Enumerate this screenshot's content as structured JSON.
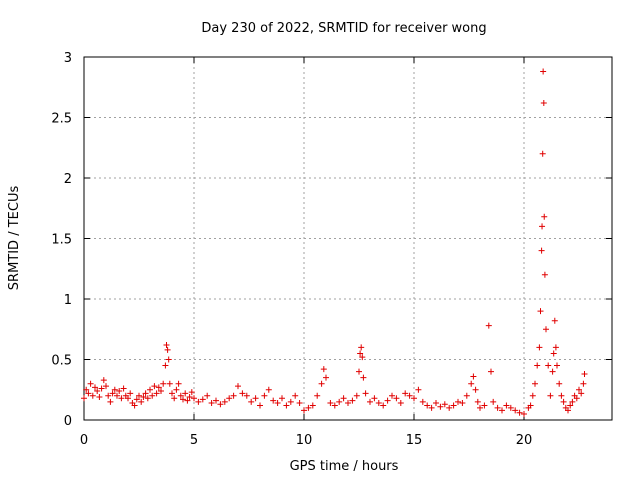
{
  "chart_data": {
    "type": "scatter",
    "title": "Day 230 of 2022, SRMTID for receiver wong",
    "xlabel": "GPS time / hours",
    "ylabel": "SRMTID / TECUs",
    "xlim": [
      0,
      24
    ],
    "ylim": [
      0,
      3
    ],
    "xticks": [
      0,
      5,
      10,
      15,
      20
    ],
    "xtick_labels": [
      "0",
      "5",
      "10",
      "15",
      "20"
    ],
    "yticks": [
      0,
      0.5,
      1,
      1.5,
      2,
      2.5,
      3
    ],
    "ytick_labels": [
      "0",
      "0.5",
      "1",
      "1.5",
      "2",
      "2.5",
      "3"
    ],
    "grid": true,
    "marker": "+",
    "color": "#e00000",
    "series": [
      {
        "name": "SRMTID",
        "x": [
          0.0,
          0.1,
          0.2,
          0.3,
          0.4,
          0.5,
          0.6,
          0.7,
          0.8,
          0.9,
          1.0,
          1.1,
          1.2,
          1.3,
          1.4,
          1.5,
          1.6,
          1.7,
          1.8,
          1.9,
          2.0,
          2.1,
          2.2,
          2.3,
          2.4,
          2.5,
          2.6,
          2.7,
          2.8,
          2.9,
          3.0,
          3.1,
          3.2,
          3.3,
          3.4,
          3.5,
          3.6,
          3.7,
          3.75,
          3.8,
          3.85,
          3.9,
          4.0,
          4.1,
          4.2,
          4.3,
          4.4,
          4.5,
          4.6,
          4.7,
          4.8,
          4.9,
          5.0,
          5.2,
          5.4,
          5.6,
          5.8,
          6.0,
          6.2,
          6.4,
          6.6,
          6.8,
          7.0,
          7.2,
          7.4,
          7.6,
          7.8,
          8.0,
          8.2,
          8.4,
          8.6,
          8.8,
          9.0,
          9.2,
          9.4,
          9.6,
          9.8,
          10.0,
          10.2,
          10.4,
          10.6,
          10.8,
          10.9,
          11.0,
          11.2,
          11.4,
          11.6,
          11.8,
          12.0,
          12.2,
          12.4,
          12.5,
          12.55,
          12.6,
          12.65,
          12.7,
          12.8,
          13.0,
          13.2,
          13.4,
          13.6,
          13.8,
          14.0,
          14.2,
          14.4,
          14.6,
          14.8,
          15.0,
          15.2,
          15.4,
          15.6,
          15.8,
          16.0,
          16.2,
          16.4,
          16.6,
          16.8,
          17.0,
          17.2,
          17.4,
          17.6,
          17.7,
          17.8,
          17.9,
          18.0,
          18.2,
          18.4,
          18.5,
          18.6,
          18.8,
          19.0,
          19.2,
          19.4,
          19.6,
          19.8,
          20.0,
          20.2,
          20.3,
          20.4,
          20.5,
          20.6,
          20.7,
          20.75,
          20.8,
          20.82,
          20.85,
          20.87,
          20.9,
          20.92,
          20.95,
          21.0,
          21.1,
          21.2,
          21.3,
          21.35,
          21.4,
          21.45,
          21.5,
          21.6,
          21.7,
          21.8,
          21.9,
          22.0,
          22.1,
          22.2,
          22.3,
          22.4,
          22.5,
          22.6,
          22.7,
          22.75
        ],
        "y": [
          0.18,
          0.25,
          0.22,
          0.3,
          0.2,
          0.27,
          0.24,
          0.19,
          0.26,
          0.33,
          0.28,
          0.2,
          0.15,
          0.22,
          0.25,
          0.2,
          0.24,
          0.18,
          0.26,
          0.2,
          0.18,
          0.22,
          0.14,
          0.12,
          0.17,
          0.2,
          0.15,
          0.19,
          0.22,
          0.18,
          0.25,
          0.2,
          0.28,
          0.22,
          0.27,
          0.24,
          0.3,
          0.45,
          0.62,
          0.58,
          0.5,
          0.3,
          0.22,
          0.18,
          0.25,
          0.3,
          0.2,
          0.17,
          0.22,
          0.16,
          0.19,
          0.23,
          0.18,
          0.15,
          0.17,
          0.2,
          0.14,
          0.16,
          0.13,
          0.15,
          0.18,
          0.2,
          0.28,
          0.22,
          0.2,
          0.15,
          0.18,
          0.12,
          0.2,
          0.25,
          0.16,
          0.14,
          0.18,
          0.12,
          0.15,
          0.2,
          0.14,
          0.08,
          0.1,
          0.12,
          0.2,
          0.3,
          0.42,
          0.35,
          0.14,
          0.12,
          0.15,
          0.18,
          0.14,
          0.16,
          0.2,
          0.4,
          0.55,
          0.6,
          0.52,
          0.35,
          0.22,
          0.15,
          0.18,
          0.14,
          0.12,
          0.16,
          0.2,
          0.18,
          0.14,
          0.22,
          0.2,
          0.18,
          0.25,
          0.15,
          0.12,
          0.1,
          0.14,
          0.11,
          0.13,
          0.1,
          0.12,
          0.15,
          0.14,
          0.2,
          0.3,
          0.36,
          0.25,
          0.15,
          0.1,
          0.12,
          0.78,
          0.4,
          0.15,
          0.1,
          0.08,
          0.12,
          0.1,
          0.08,
          0.06,
          0.05,
          0.1,
          0.12,
          0.2,
          0.3,
          0.45,
          0.6,
          0.9,
          1.4,
          1.6,
          2.2,
          2.88,
          2.62,
          1.68,
          1.2,
          0.75,
          0.45,
          0.2,
          0.4,
          0.55,
          0.82,
          0.6,
          0.45,
          0.3,
          0.2,
          0.15,
          0.1,
          0.08,
          0.12,
          0.15,
          0.2,
          0.18,
          0.25,
          0.22,
          0.3,
          0.38
        ]
      }
    ]
  }
}
